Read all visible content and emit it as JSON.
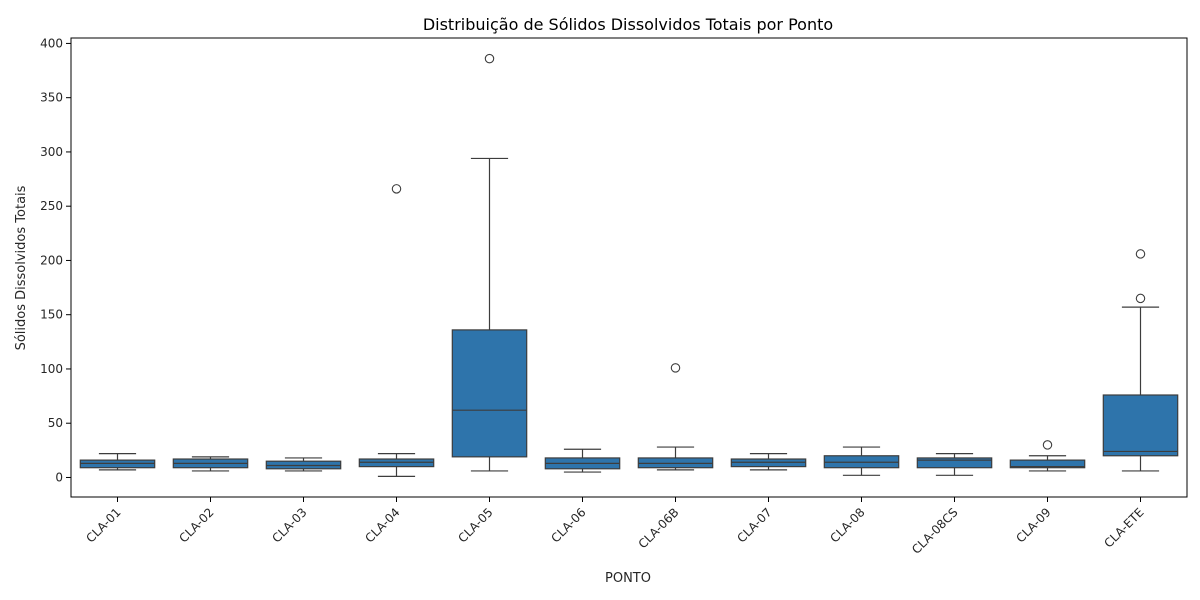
{
  "chart_data": {
    "type": "box",
    "title": "Distribuição de Sólidos Dissolvidos Totais por Ponto",
    "xlabel": "PONTO",
    "ylabel": "Sólidos Dissolvidos Totais",
    "ylim": [
      -18,
      405
    ],
    "yticks": [
      0,
      50,
      100,
      150,
      200,
      250,
      300,
      350,
      400
    ],
    "box_color": "#2e74ab",
    "line_color": "#3d3d3d",
    "categories": [
      "CLA-01",
      "CLA-02",
      "CLA-03",
      "CLA-04",
      "CLA-05",
      "CLA-06",
      "CLA-06B",
      "CLA-07",
      "CLA-08",
      "CLA-08CS",
      "CLA-09",
      "CLA-ETE"
    ],
    "boxes": [
      {
        "category": "CLA-01",
        "whisker_low": 7,
        "q1": 9,
        "median": 13,
        "q3": 16,
        "whisker_high": 22,
        "outliers": []
      },
      {
        "category": "CLA-02",
        "whisker_low": 6,
        "q1": 9,
        "median": 13,
        "q3": 17,
        "whisker_high": 19,
        "outliers": []
      },
      {
        "category": "CLA-03",
        "whisker_low": 6,
        "q1": 8,
        "median": 11,
        "q3": 15,
        "whisker_high": 18,
        "outliers": []
      },
      {
        "category": "CLA-04",
        "whisker_low": 1,
        "q1": 10,
        "median": 14,
        "q3": 17,
        "whisker_high": 22,
        "outliers": [
          266
        ]
      },
      {
        "category": "CLA-05",
        "whisker_low": 6,
        "q1": 19,
        "median": 62,
        "q3": 136,
        "whisker_high": 294,
        "outliers": [
          386
        ]
      },
      {
        "category": "CLA-06",
        "whisker_low": 5,
        "q1": 8,
        "median": 13,
        "q3": 18,
        "whisker_high": 26,
        "outliers": []
      },
      {
        "category": "CLA-06B",
        "whisker_low": 7,
        "q1": 9,
        "median": 13,
        "q3": 18,
        "whisker_high": 28,
        "outliers": [
          101
        ]
      },
      {
        "category": "CLA-07",
        "whisker_low": 7,
        "q1": 10,
        "median": 14,
        "q3": 17,
        "whisker_high": 22,
        "outliers": []
      },
      {
        "category": "CLA-08",
        "whisker_low": 2,
        "q1": 9,
        "median": 14,
        "q3": 20,
        "whisker_high": 28,
        "outliers": []
      },
      {
        "category": "CLA-08CS",
        "whisker_low": 2,
        "q1": 9,
        "median": 16,
        "q3": 18,
        "whisker_high": 22,
        "outliers": []
      },
      {
        "category": "CLA-09",
        "whisker_low": 6,
        "q1": 9,
        "median": 10,
        "q3": 16,
        "whisker_high": 20,
        "outliers": [
          30
        ]
      },
      {
        "category": "CLA-ETE",
        "whisker_low": 6,
        "q1": 20,
        "median": 24,
        "q3": 76,
        "whisker_high": 157,
        "outliers": [
          165,
          206
        ]
      }
    ]
  }
}
